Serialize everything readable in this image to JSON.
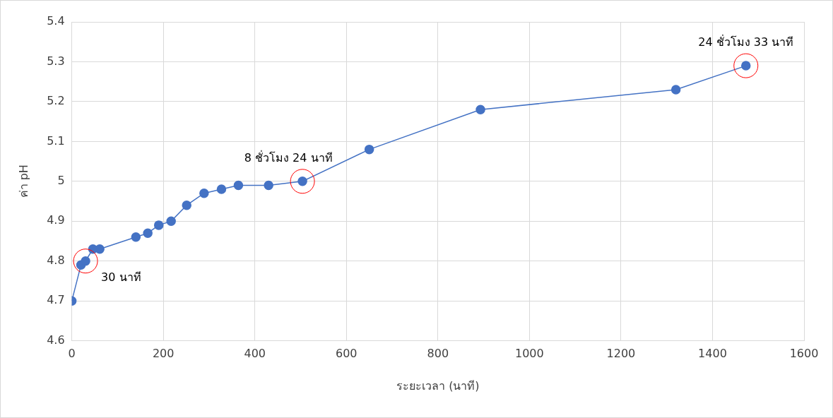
{
  "chart_data": {
    "type": "line",
    "xlabel": "ระยะเวลา (นาที)",
    "ylabel": "ค่า pH",
    "series": [
      {
        "color": "#4472c4",
        "x": [
          0,
          20,
          30,
          46,
          61,
          140,
          166,
          190,
          217,
          251,
          289,
          327,
          364,
          430,
          504,
          650,
          893,
          1320,
          1473
        ],
        "values": [
          4.7,
          4.79,
          4.8,
          4.83,
          4.83,
          4.86,
          4.87,
          4.89,
          4.9,
          4.94,
          4.97,
          4.98,
          4.99,
          4.99,
          5.0,
          5.08,
          5.18,
          5.23,
          5.29
        ]
      }
    ],
    "xlim": [
      0,
      1600
    ],
    "xticks": [
      0,
      200,
      400,
      600,
      800,
      1000,
      1200,
      1400,
      1600
    ],
    "ylim": [
      4.6,
      5.4
    ],
    "yticks": [
      4.6,
      4.7,
      4.8,
      4.9,
      {
        "value": 5,
        "label": "5"
      },
      5.1,
      5.2,
      5.3,
      5.4
    ],
    "grid": true,
    "legend": false,
    "marker": "circle",
    "line_style": "solid",
    "annotations": [
      {
        "text": "30 นาที",
        "x": 30,
        "y": 4.8
      },
      {
        "text": "8 ชั่วโมง 24 นาที",
        "x": 504,
        "y": 5.0
      },
      {
        "text": "24 ชั่วโมง 33 นาที",
        "x": 1473,
        "y": 5.29
      }
    ]
  }
}
